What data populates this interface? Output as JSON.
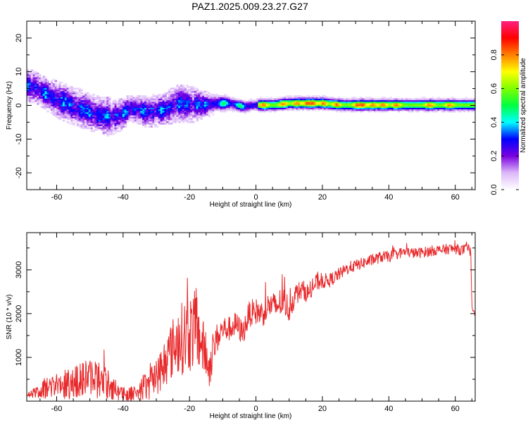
{
  "figure": {
    "title": "PAZ1.2025.009.23.27.G27"
  },
  "chart_data": [
    {
      "type": "heatmap",
      "xlabel": "Height of straight line (km)",
      "ylabel": "Frequency (Hz)",
      "xlim": [
        -69,
        66
      ],
      "ylim": [
        -25,
        25
      ],
      "xticks": [
        -60,
        -40,
        -20,
        0,
        20,
        40,
        60
      ],
      "yticks": [
        -20,
        -10,
        0,
        10,
        20
      ],
      "grid": false,
      "colorbar": {
        "label": "Normalized spectral amplitude",
        "range": [
          0,
          1
        ],
        "ticks": [
          "0.0",
          "0.2",
          "0.4",
          "0.6",
          "0.8"
        ],
        "tick_values": [
          0,
          0.2,
          0.4,
          0.6,
          0.8
        ],
        "colors": [
          "#ffffff",
          "#dcb8f8",
          "#7a00e0",
          "#0000ff",
          "#00ffff",
          "#00ff40",
          "#80ff00",
          "#ffff00",
          "#ff8000",
          "#ff0000",
          "#ff2080"
        ]
      },
      "ridge": [
        {
          "x": -67,
          "f": 5.5,
          "amp": 0.28,
          "spread": 3.0
        },
        {
          "x": -64,
          "f": 3.5,
          "amp": 0.25,
          "spread": 3.0
        },
        {
          "x": -60,
          "f": 1.5,
          "amp": 0.26,
          "spread": 3.5
        },
        {
          "x": -56,
          "f": 0.0,
          "amp": 0.25,
          "spread": 3.5
        },
        {
          "x": -52,
          "f": -1.5,
          "amp": 0.23,
          "spread": 3.5
        },
        {
          "x": -48,
          "f": -3.0,
          "amp": 0.23,
          "spread": 3.5
        },
        {
          "x": -44,
          "f": -3.5,
          "amp": 0.21,
          "spread": 3.5
        },
        {
          "x": -41,
          "f": -3.0,
          "amp": 0.18,
          "spread": 3.0
        },
        {
          "x": -38,
          "f": -1.0,
          "amp": 0.25,
          "spread": 2.5
        },
        {
          "x": -33,
          "f": -2.0,
          "amp": 0.24,
          "spread": 3.0
        },
        {
          "x": -28,
          "f": -1.5,
          "amp": 0.24,
          "spread": 3.0
        },
        {
          "x": -24,
          "f": 0.5,
          "amp": 0.25,
          "spread": 3.5
        },
        {
          "x": -20,
          "f": 0.0,
          "amp": 0.27,
          "spread": 3.5
        },
        {
          "x": -16,
          "f": 0.0,
          "amp": 0.32,
          "spread": 2.5
        },
        {
          "x": -12,
          "f": 0.5,
          "amp": 0.42,
          "spread": 1.8
        },
        {
          "x": -8,
          "f": 0.5,
          "amp": 0.6,
          "spread": 1.4
        },
        {
          "x": -4,
          "f": -0.5,
          "amp": 0.62,
          "spread": 1.3
        },
        {
          "x": 0,
          "f": 0.0,
          "amp": 0.66,
          "spread": 1.2
        },
        {
          "x": 5,
          "f": 0.0,
          "amp": 0.68,
          "spread": 1.2
        },
        {
          "x": 10,
          "f": 0.5,
          "amp": 0.72,
          "spread": 1.2
        },
        {
          "x": 15,
          "f": 0.5,
          "amp": 0.8,
          "spread": 1.2
        },
        {
          "x": 20,
          "f": 0.5,
          "amp": 0.75,
          "spread": 1.2
        },
        {
          "x": 25,
          "f": 0.0,
          "amp": 0.7,
          "spread": 1.2
        },
        {
          "x": 30,
          "f": 0.0,
          "amp": 0.82,
          "spread": 1.2
        },
        {
          "x": 35,
          "f": 0.0,
          "amp": 0.85,
          "spread": 1.2
        },
        {
          "x": 40,
          "f": 0.0,
          "amp": 0.72,
          "spread": 1.2
        },
        {
          "x": 45,
          "f": 0.0,
          "amp": 0.68,
          "spread": 1.2
        },
        {
          "x": 50,
          "f": 0.0,
          "amp": 0.7,
          "spread": 1.2
        },
        {
          "x": 55,
          "f": 0.0,
          "amp": 0.66,
          "spread": 1.2
        },
        {
          "x": 60,
          "f": 0.0,
          "amp": 0.62,
          "spread": 1.2
        },
        {
          "x": 66,
          "f": 0.0,
          "amp": 0.6,
          "spread": 1.2
        }
      ],
      "hot_spots_x": [
        -10,
        -5,
        2,
        8,
        12,
        15,
        17,
        20,
        24,
        30,
        32,
        35,
        38,
        42,
        52,
        58
      ]
    },
    {
      "type": "line",
      "xlabel": "Height of straight line (km)",
      "ylabel": "SNR (10 * v/v)",
      "xlim": [
        -69,
        66
      ],
      "ylim": [
        0,
        3850
      ],
      "xticks": [
        -60,
        -40,
        -20,
        0,
        20,
        40,
        60
      ],
      "yticks": [
        1000,
        2000,
        3000
      ],
      "grid": false,
      "series": [
        {
          "color": "#e8292b",
          "x": [
            -69,
            -66,
            -63,
            -60,
            -57,
            -54,
            -51,
            -48,
            -45,
            -42,
            -39,
            -36,
            -33,
            -30,
            -27,
            -24,
            -21,
            -18,
            -16,
            -14,
            -12,
            -10,
            -8,
            -6,
            -4,
            -2,
            0,
            2,
            4,
            6,
            8,
            10,
            12,
            14,
            16,
            18,
            20,
            22,
            24,
            26,
            28,
            30,
            32,
            34,
            36,
            38,
            40,
            42,
            44,
            46,
            48,
            50,
            52,
            54,
            56,
            58,
            60,
            62,
            64,
            64.7,
            65,
            66
          ],
          "y": [
            150,
            200,
            300,
            350,
            380,
            450,
            550,
            520,
            420,
            250,
            150,
            220,
            330,
            550,
            950,
            1350,
            1500,
            1650,
            1250,
            750,
            1400,
            1650,
            1650,
            1750,
            1550,
            2000,
            2050,
            2000,
            2200,
            2150,
            2300,
            2100,
            2450,
            2550,
            2450,
            2700,
            2750,
            2750,
            2850,
            2950,
            3050,
            3100,
            3150,
            3200,
            3250,
            3300,
            3300,
            3350,
            3400,
            3400,
            3380,
            3400,
            3420,
            3450,
            3450,
            3480,
            3480,
            3450,
            3480,
            3400,
            2150,
            2000
          ],
          "noise": [
            70,
            120,
            250,
            300,
            350,
            380,
            420,
            450,
            380,
            250,
            150,
            220,
            320,
            450,
            600,
            750,
            900,
            900,
            650,
            450,
            350,
            300,
            280,
            300,
            280,
            300,
            300,
            300,
            300,
            330,
            350,
            300,
            250,
            220,
            220,
            200,
            180,
            160,
            150,
            140,
            140,
            130,
            130,
            130,
            130,
            130,
            130,
            120,
            120,
            120,
            120,
            120,
            120,
            120,
            120,
            120,
            120,
            120,
            120,
            100,
            60,
            60
          ]
        }
      ]
    }
  ]
}
